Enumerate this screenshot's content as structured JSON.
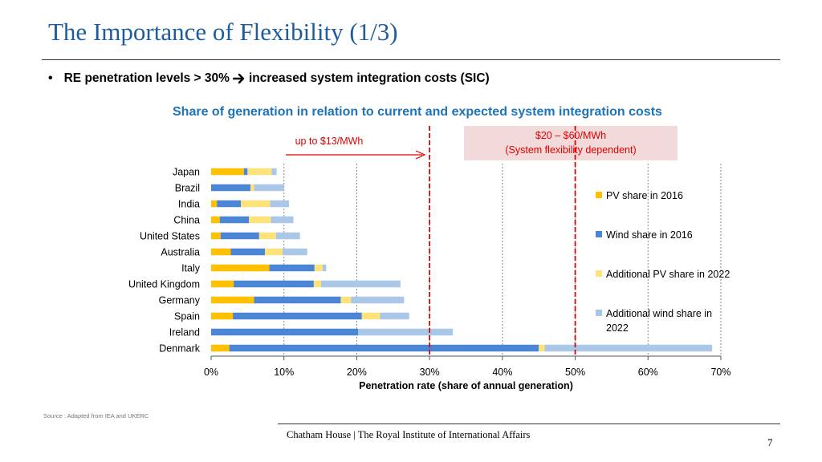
{
  "slide": {
    "title": "The Importance of Flexibility (1/3)",
    "bullet": {
      "lead": "RE penetration levels > 30%",
      "trail": "increased system integration costs (SIC)"
    },
    "source": "Source : Adapted from IEA and UKERC",
    "footer": "Chatham House  |  The Royal Institute of International Affairs",
    "page_number": "7"
  },
  "colors": {
    "title": "#1f5c99",
    "chart_title": "#1f73b7",
    "pv_2016": "#ffc000",
    "wind_2016": "#4a86d4",
    "pv_add_2022": "#ffe27a",
    "wind_add_2022": "#abc7e8",
    "threshold_line": "#e00000",
    "sic_box": "#f2d9da"
  },
  "chart_data": {
    "type": "bar",
    "orientation": "horizontal",
    "stacked": true,
    "title": "Share of generation in relation to current and expected system integration costs",
    "xlabel": "Penetration rate (share of annual generation)",
    "ylabel": "",
    "xlim": [
      0,
      70
    ],
    "xticks": [
      0,
      10,
      20,
      30,
      40,
      50,
      60,
      70
    ],
    "xtick_labels": [
      "0%",
      "10%",
      "20%",
      "30%",
      "40%",
      "50%",
      "60%",
      "70%"
    ],
    "categories": [
      "Japan",
      "Brazil",
      "India",
      "China",
      "United States",
      "Australia",
      "Italy",
      "United Kingdom",
      "Germany",
      "Spain",
      "Ireland",
      "Denmark"
    ],
    "series": [
      {
        "name": "PV share in 2016",
        "color": "#ffc000",
        "values": [
          4.5,
          0,
          0.8,
          1.2,
          1.3,
          2.7,
          8.0,
          3.1,
          5.9,
          3.0,
          0,
          2.5
        ]
      },
      {
        "name": "Wind share in 2016",
        "color": "#4a86d4",
        "values": [
          0.5,
          5.4,
          3.3,
          4.0,
          5.3,
          4.7,
          6.2,
          11.0,
          11.9,
          17.7,
          20.2,
          42.5
        ]
      },
      {
        "name": "Additional PV share in 2022",
        "color": "#ffe27a",
        "values": [
          3.3,
          0.5,
          4.0,
          3.0,
          2.3,
          2.4,
          1.1,
          1.0,
          1.4,
          2.5,
          0,
          0.8
        ]
      },
      {
        "name": "Additional wind share in 2022",
        "color": "#abc7e8",
        "values": [
          0.7,
          4.1,
          2.6,
          3.1,
          3.3,
          3.4,
          0.5,
          10.9,
          7.3,
          4.0,
          13.0,
          23.0
        ]
      }
    ],
    "legend_position": "right",
    "grid": "vertical dashed lines at 10% intervals",
    "threshold_lines": [
      {
        "x": 30,
        "label": "up to $13/MWh"
      },
      {
        "x": 50
      }
    ],
    "annotations": {
      "current_cost": "up to $13/MWh",
      "expected_cost": "$20 – $60/MWh",
      "expected_cost_note": "(System flexibility dependent)"
    }
  }
}
